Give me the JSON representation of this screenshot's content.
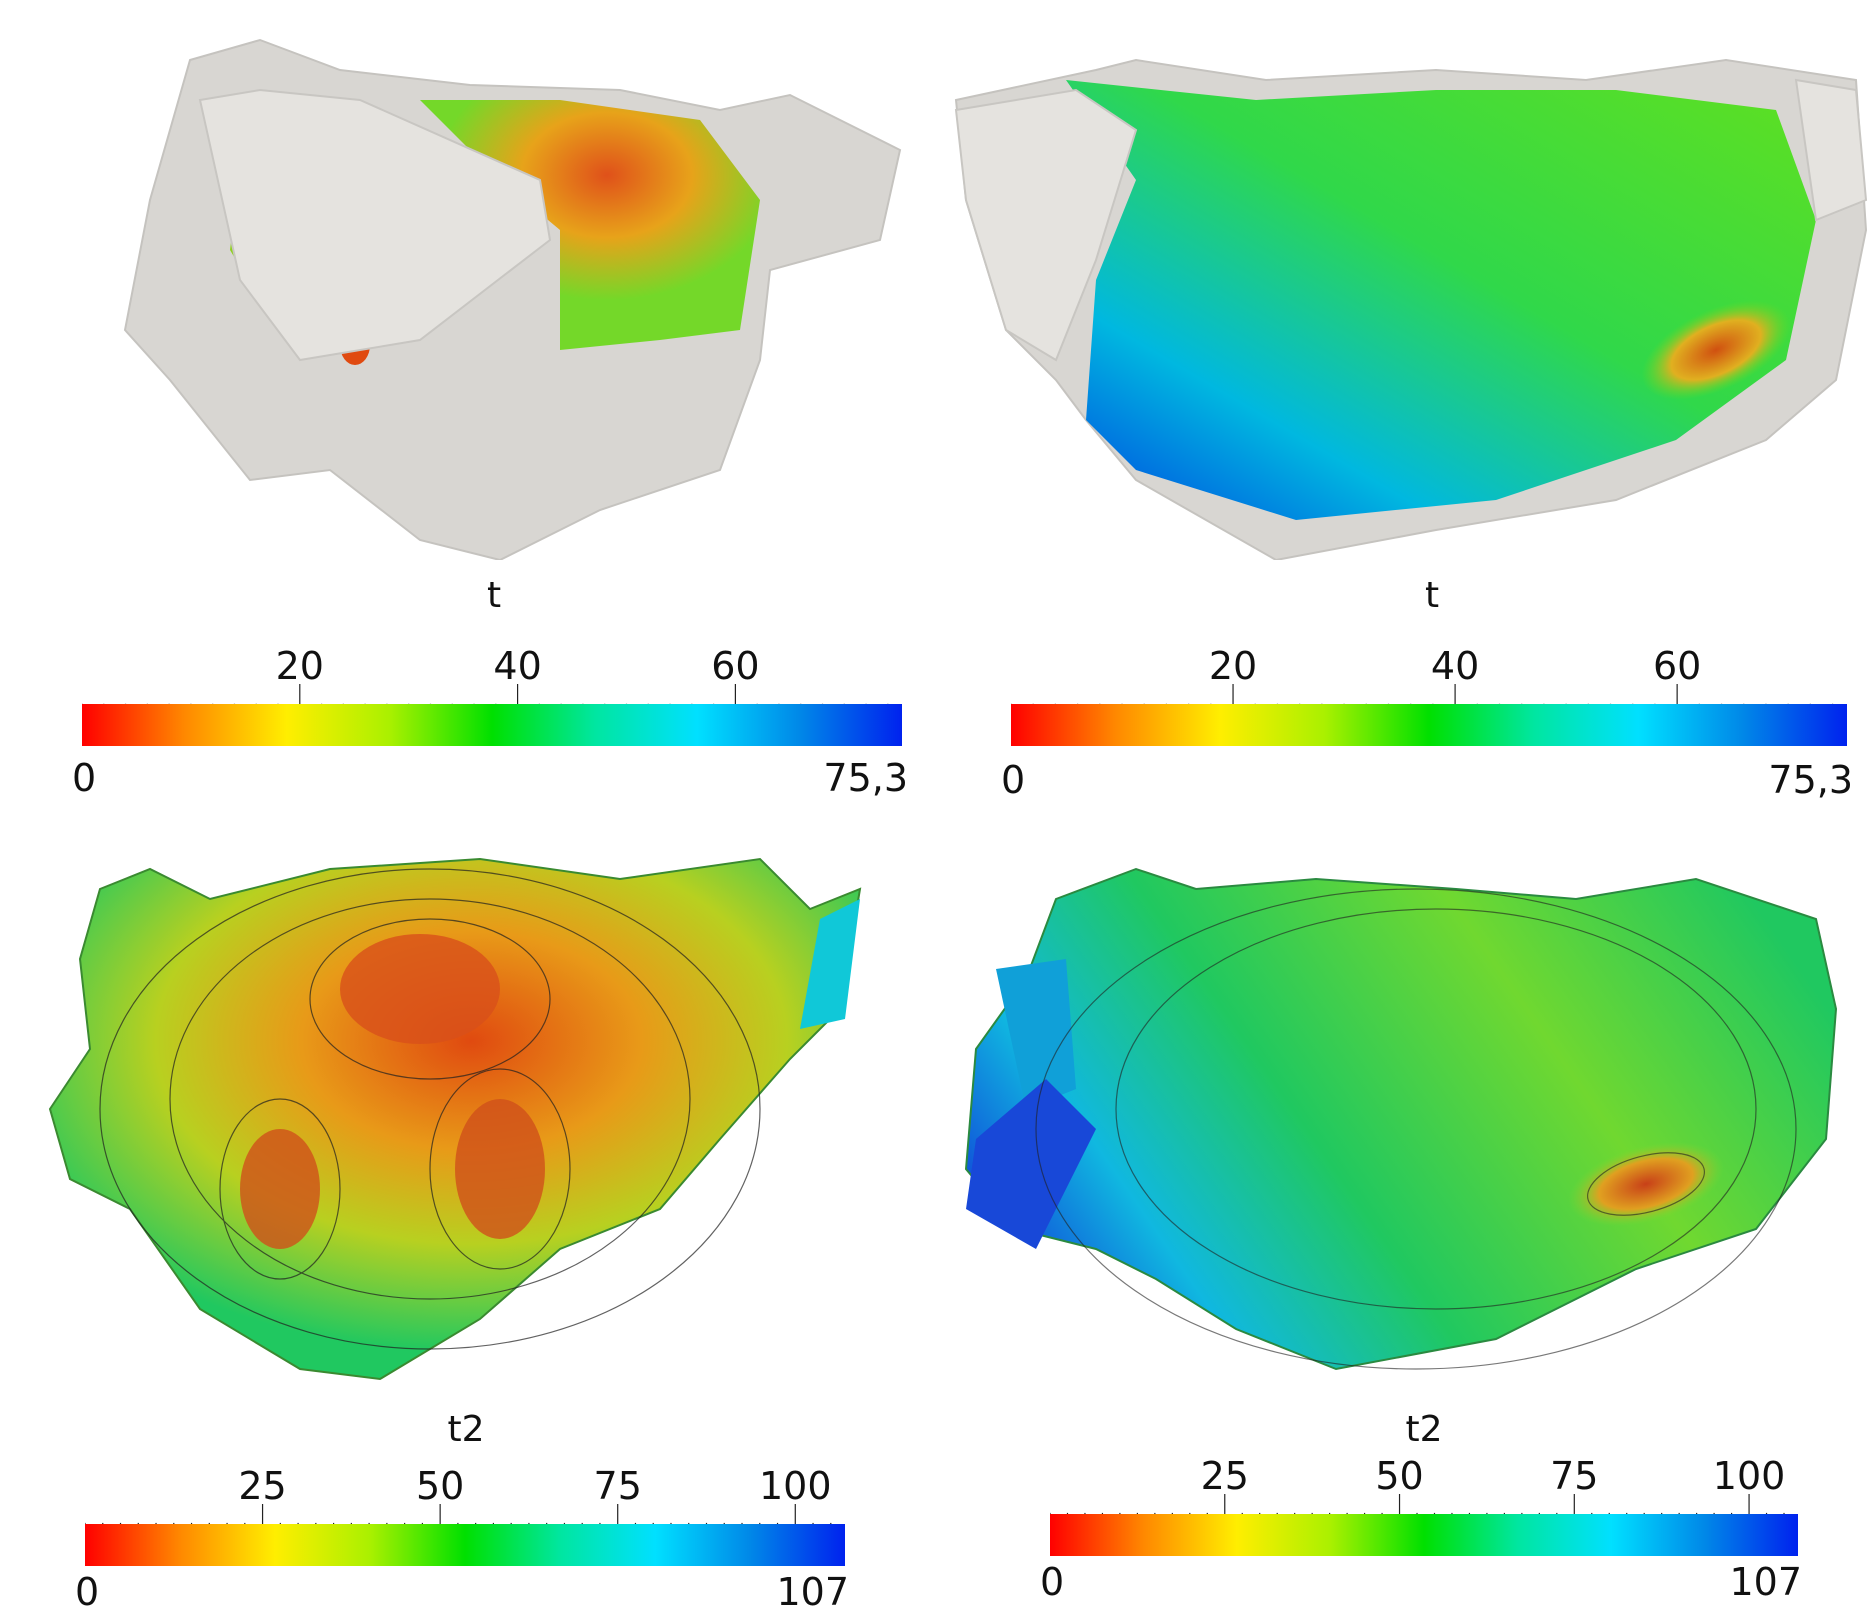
{
  "panels": [
    {
      "id": "top-left",
      "title": "t",
      "min_label": "0",
      "max_label": "75,3",
      "ticks": [
        {
          "label": "20",
          "value": 20
        },
        {
          "label": "40",
          "value": 40
        },
        {
          "label": "60",
          "value": 60
        }
      ],
      "range": [
        0,
        75.3
      ],
      "coverage": "partial",
      "minor_step": 2
    },
    {
      "id": "top-right",
      "title": "t",
      "min_label": "0",
      "max_label": "75,3",
      "ticks": [
        {
          "label": "20",
          "value": 20
        },
        {
          "label": "40",
          "value": 40
        },
        {
          "label": "60",
          "value": 60
        }
      ],
      "range": [
        0,
        75.3
      ],
      "coverage": "partial",
      "minor_step": 2
    },
    {
      "id": "bottom-left",
      "title": "t2",
      "min_label": "0",
      "max_label": "107",
      "ticks": [
        {
          "label": "25",
          "value": 25
        },
        {
          "label": "50",
          "value": 50
        },
        {
          "label": "75",
          "value": 75
        },
        {
          "label": "100",
          "value": 100
        }
      ],
      "range": [
        0,
        107
      ],
      "coverage": "full",
      "minor_step": 2.5
    },
    {
      "id": "bottom-right",
      "title": "t2",
      "min_label": "0",
      "max_label": "107",
      "ticks": [
        {
          "label": "25",
          "value": 25
        },
        {
          "label": "50",
          "value": 50
        },
        {
          "label": "75",
          "value": 75
        },
        {
          "label": "100",
          "value": 100
        }
      ],
      "range": [
        0,
        107
      ],
      "coverage": "full",
      "minor_step": 2.5
    }
  ],
  "colormap": [
    "#ff0000",
    "#ff8800",
    "#ffee00",
    "#aaf000",
    "#00e000",
    "#00e6a0",
    "#00e0ff",
    "#0088e8",
    "#0022ee"
  ]
}
